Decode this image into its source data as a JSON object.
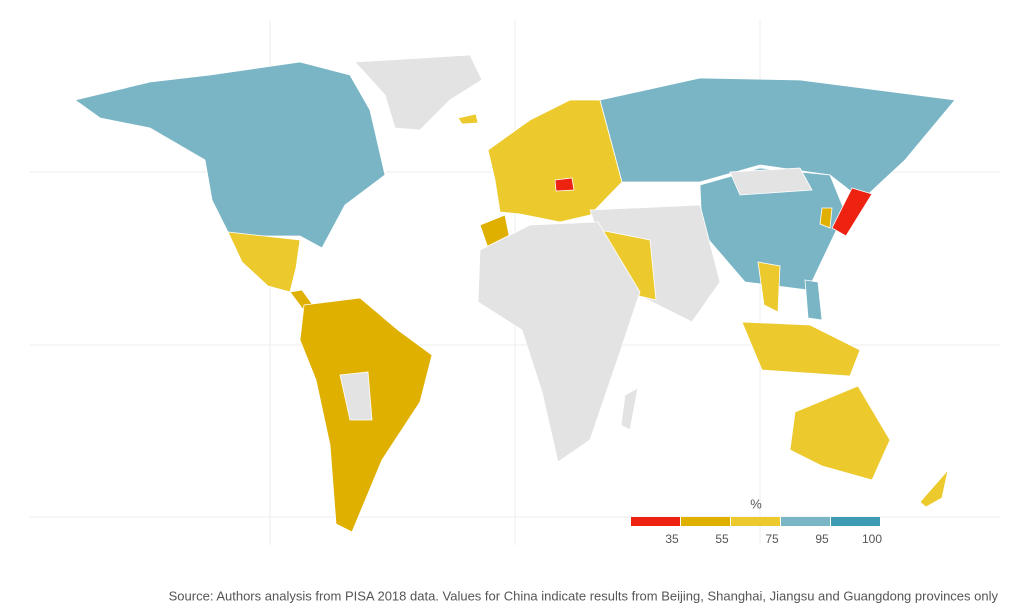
{
  "legend": {
    "title": "%",
    "breaks": [
      35,
      55,
      75,
      95,
      100
    ],
    "colors": [
      "#ee2211",
      "#e0b000",
      "#ecc92c",
      "#7ab5c6",
      "#3d9bb3"
    ]
  },
  "source": "Source: Authors analysis from PISA 2018 data. Values for China indicate results from Beijing, Shanghai, Jiangsu and Guangdong provinces only"
}
